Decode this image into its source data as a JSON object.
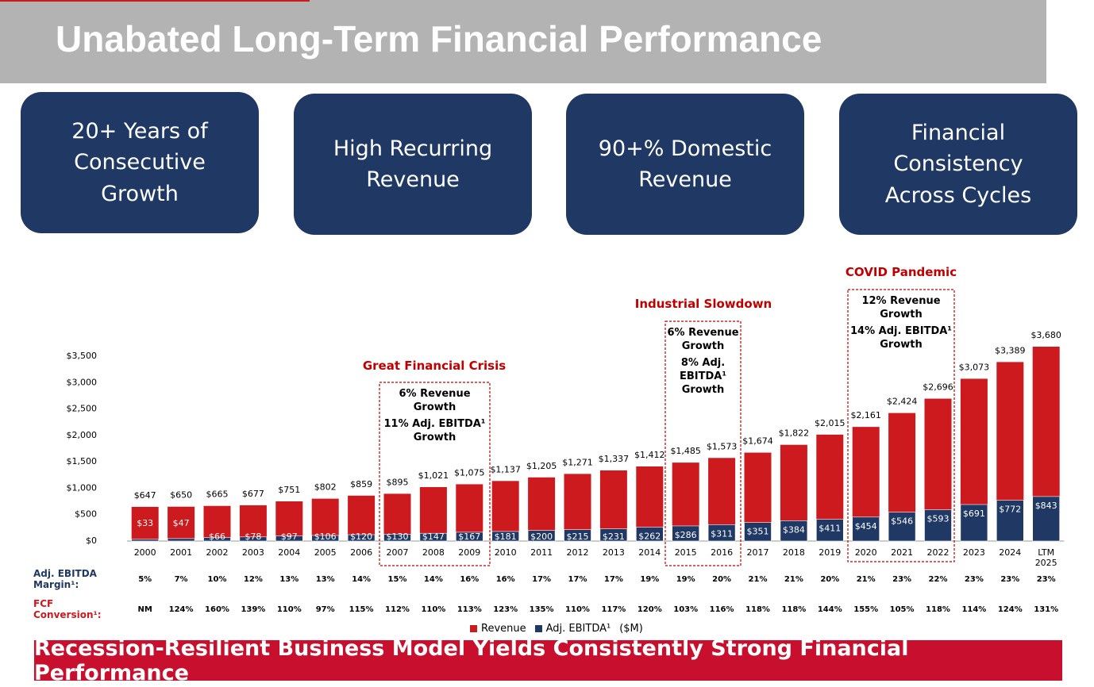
{
  "header": {
    "title": "Unabated Long-Term Financial Performance"
  },
  "highlights": [
    "20+ Years of Consecutive Growth",
    "High Recurring Revenue",
    "90+% Domestic Revenue",
    "Financial Consistency Across Cycles"
  ],
  "chart_data": {
    "type": "bar",
    "categories": [
      "2000",
      "2001",
      "2002",
      "2003",
      "2004",
      "2005",
      "2006",
      "2007",
      "2008",
      "2009",
      "2010",
      "2011",
      "2012",
      "2013",
      "2014",
      "2015",
      "2016",
      "2017",
      "2018",
      "2019",
      "2020",
      "2021",
      "2022",
      "2023",
      "2024",
      "LTM 2025"
    ],
    "series": [
      {
        "name": "Revenue",
        "color": "#cc1a1e",
        "values": [
          647,
          650,
          665,
          677,
          751,
          802,
          859,
          895,
          1021,
          1075,
          1137,
          1205,
          1271,
          1337,
          1412,
          1485,
          1573,
          1674,
          1822,
          2015,
          2161,
          2424,
          2696,
          3073,
          3389,
          3680
        ],
        "value_labels": [
          "$647",
          "$650",
          "$665",
          "$677",
          "$751",
          "$802",
          "$859",
          "$895",
          "$1,021",
          "$1,075",
          "$1,137",
          "$1,205",
          "$1,271",
          "$1,337",
          "$1,412",
          "$1,485",
          "$1,573",
          "$1,674",
          "$1,822",
          "$2,015",
          "$2,161",
          "$2,424",
          "$2,696",
          "$3,073",
          "$3,389",
          "$3,680"
        ]
      },
      {
        "name": "Adj. EBITDA¹",
        "color": "#1f3864",
        "values": [
          33,
          47,
          66,
          78,
          97,
          106,
          120,
          130,
          147,
          167,
          181,
          200,
          215,
          231,
          262,
          286,
          311,
          351,
          384,
          411,
          454,
          546,
          593,
          691,
          772,
          843
        ],
        "value_labels": [
          "$33",
          "$47",
          "$66",
          "$78",
          "$97",
          "$106",
          "$120",
          "$130",
          "$147",
          "$167",
          "$181",
          "$200",
          "$215",
          "$231",
          "$262",
          "$286",
          "$311",
          "$351",
          "$384",
          "$411",
          "$454",
          "$546",
          "$593",
          "$691",
          "$772",
          "$843"
        ]
      }
    ],
    "ylim": [
      0,
      3500
    ],
    "yticks": [
      {
        "value": 0,
        "label": "$0"
      },
      {
        "value": 500,
        "label": "$500"
      },
      {
        "value": 1000,
        "label": "$1,000"
      },
      {
        "value": 1500,
        "label": "$1,500"
      },
      {
        "value": 2000,
        "label": "$2,000"
      },
      {
        "value": 2500,
        "label": "$2,500"
      },
      {
        "value": 3000,
        "label": "$3,000"
      },
      {
        "value": 3500,
        "label": "$3,500"
      }
    ],
    "unit": "($M)",
    "annotations": [
      {
        "title": "Great Financial Crisis",
        "lines": [
          "6% Revenue Growth",
          "11% Adj. EBITDA¹ Growth"
        ]
      },
      {
        "title": "Industrial Slowdown",
        "lines": [
          "6% Revenue Growth",
          "8% Adj. EBITDA¹ Growth"
        ]
      },
      {
        "title": "COVID Pandemic",
        "lines": [
          "12% Revenue Growth",
          "14% Adj. EBITDA¹ Growth"
        ]
      }
    ],
    "rows": [
      {
        "label": "Adj. EBITDA Margin¹:",
        "values": [
          "5%",
          "7%",
          "10%",
          "12%",
          "13%",
          "13%",
          "14%",
          "15%",
          "14%",
          "16%",
          "16%",
          "17%",
          "17%",
          "17%",
          "19%",
          "19%",
          "20%",
          "21%",
          "21%",
          "20%",
          "21%",
          "23%",
          "22%",
          "23%",
          "23%",
          "23%"
        ]
      },
      {
        "label": "FCF Conversion¹:",
        "values": [
          "NM",
          "124%",
          "160%",
          "139%",
          "110%",
          "97%",
          "115%",
          "112%",
          "110%",
          "113%",
          "123%",
          "135%",
          "110%",
          "117%",
          "120%",
          "103%",
          "116%",
          "118%",
          "118%",
          "144%",
          "155%",
          "105%",
          "118%",
          "114%",
          "124%",
          "131%"
        ]
      }
    ]
  },
  "footer": {
    "text": "Recession-Resilient Business Model Yields Consistently Strong Financial Performance"
  }
}
